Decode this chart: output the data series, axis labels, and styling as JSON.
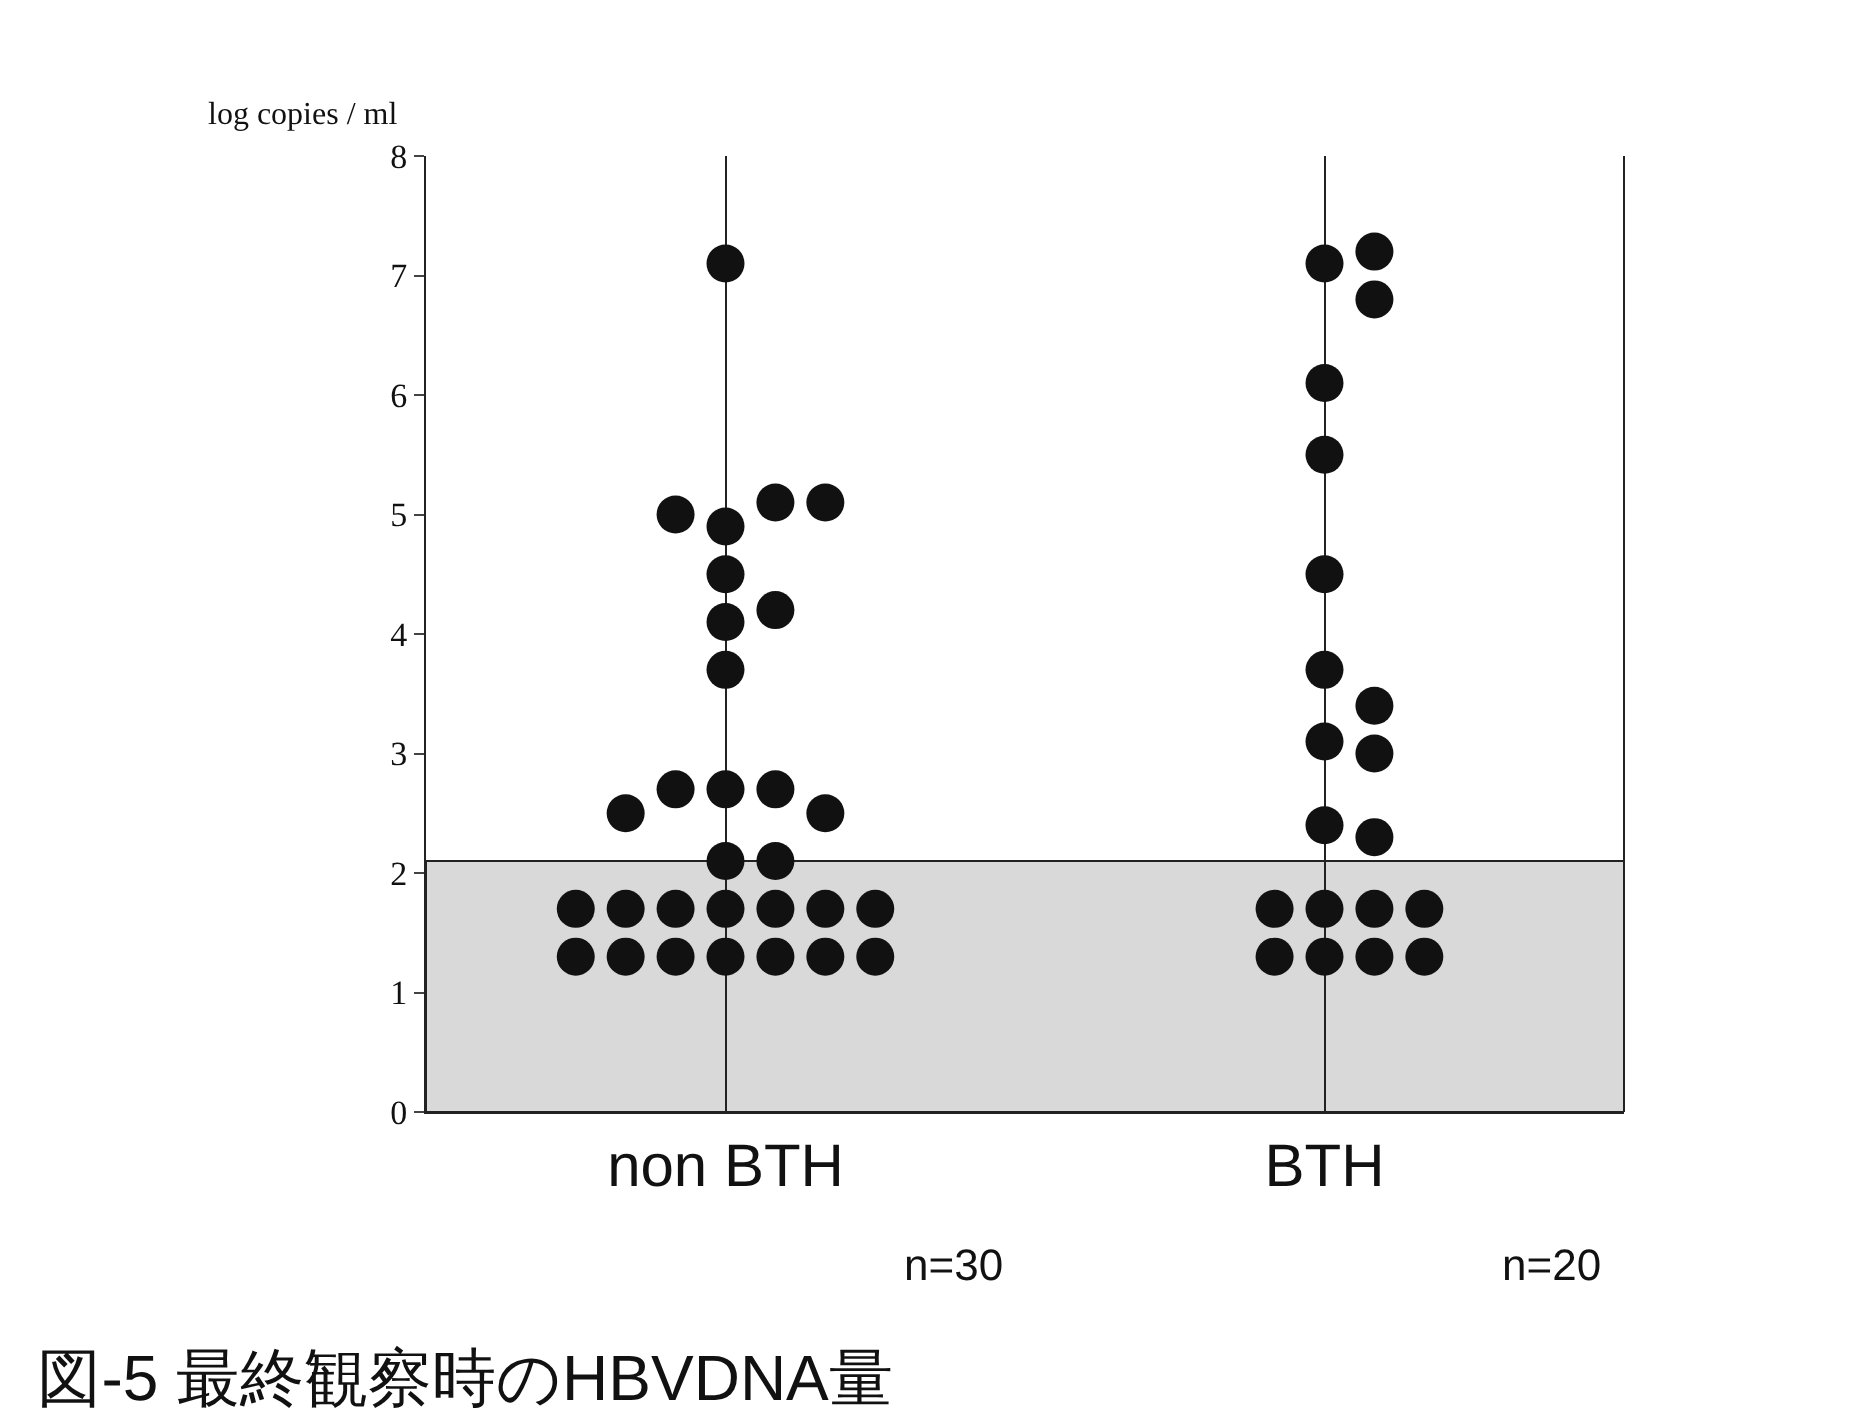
{
  "chart_data": {
    "type": "scatter",
    "title": "図-5 最終観察時のHBVDNA量",
    "ylabel": "log copies / ml",
    "categories": [
      "non BTH",
      "BTH"
    ],
    "series": [
      {
        "color": "#111111",
        "x": [
          "non BTH",
          "non BTH",
          "non BTH",
          "non BTH",
          "non BTH",
          "non BTH",
          "non BTH",
          "non BTH",
          "non BTH",
          "non BTH",
          "non BTH",
          "non BTH",
          "non BTH",
          "non BTH",
          "non BTH",
          "non BTH",
          "non BTH",
          "non BTH",
          "non BTH",
          "non BTH",
          "non BTH",
          "non BTH",
          "non BTH",
          "non BTH",
          "non BTH",
          "non BTH",
          "non BTH",
          "non BTH",
          "non BTH",
          "non BTH"
        ],
        "values": [
          7.1,
          4.9,
          5.1,
          5.0,
          5.1,
          4.5,
          4.1,
          4.2,
          3.7,
          2.7,
          2.7,
          2.7,
          2.5,
          2.5,
          2.1,
          2.1,
          1.7,
          1.7,
          1.7,
          1.7,
          1.7,
          1.7,
          1.7,
          1.3,
          1.3,
          1.3,
          1.3,
          1.3,
          1.3,
          1.3
        ]
      },
      {
        "color": "#111111",
        "x": [
          "BTH",
          "BTH",
          "BTH",
          "BTH",
          "BTH",
          "BTH",
          "BTH",
          "BTH",
          "BTH",
          "BTH",
          "BTH",
          "BTH",
          "BTH",
          "BTH",
          "BTH",
          "BTH",
          "BTH",
          "BTH",
          "BTH",
          "BTH"
        ],
        "values": [
          7.1,
          7.2,
          6.8,
          6.1,
          5.5,
          4.5,
          3.7,
          3.4,
          3.1,
          3.0,
          2.4,
          2.3,
          1.7,
          1.7,
          1.7,
          1.7,
          1.3,
          1.3,
          1.3,
          1.3
        ]
      }
    ],
    "bands": [
      {
        "axis": "y",
        "from": 0,
        "to": 2.1,
        "color": "#d9d9d9"
      }
    ],
    "annotations": [
      "n=30",
      "n=20"
    ],
    "ylim": [
      0,
      8
    ],
    "yticks": [
      0,
      1,
      2,
      3,
      4,
      5,
      6,
      7,
      8
    ],
    "grid": "x",
    "marker": "circle"
  }
}
